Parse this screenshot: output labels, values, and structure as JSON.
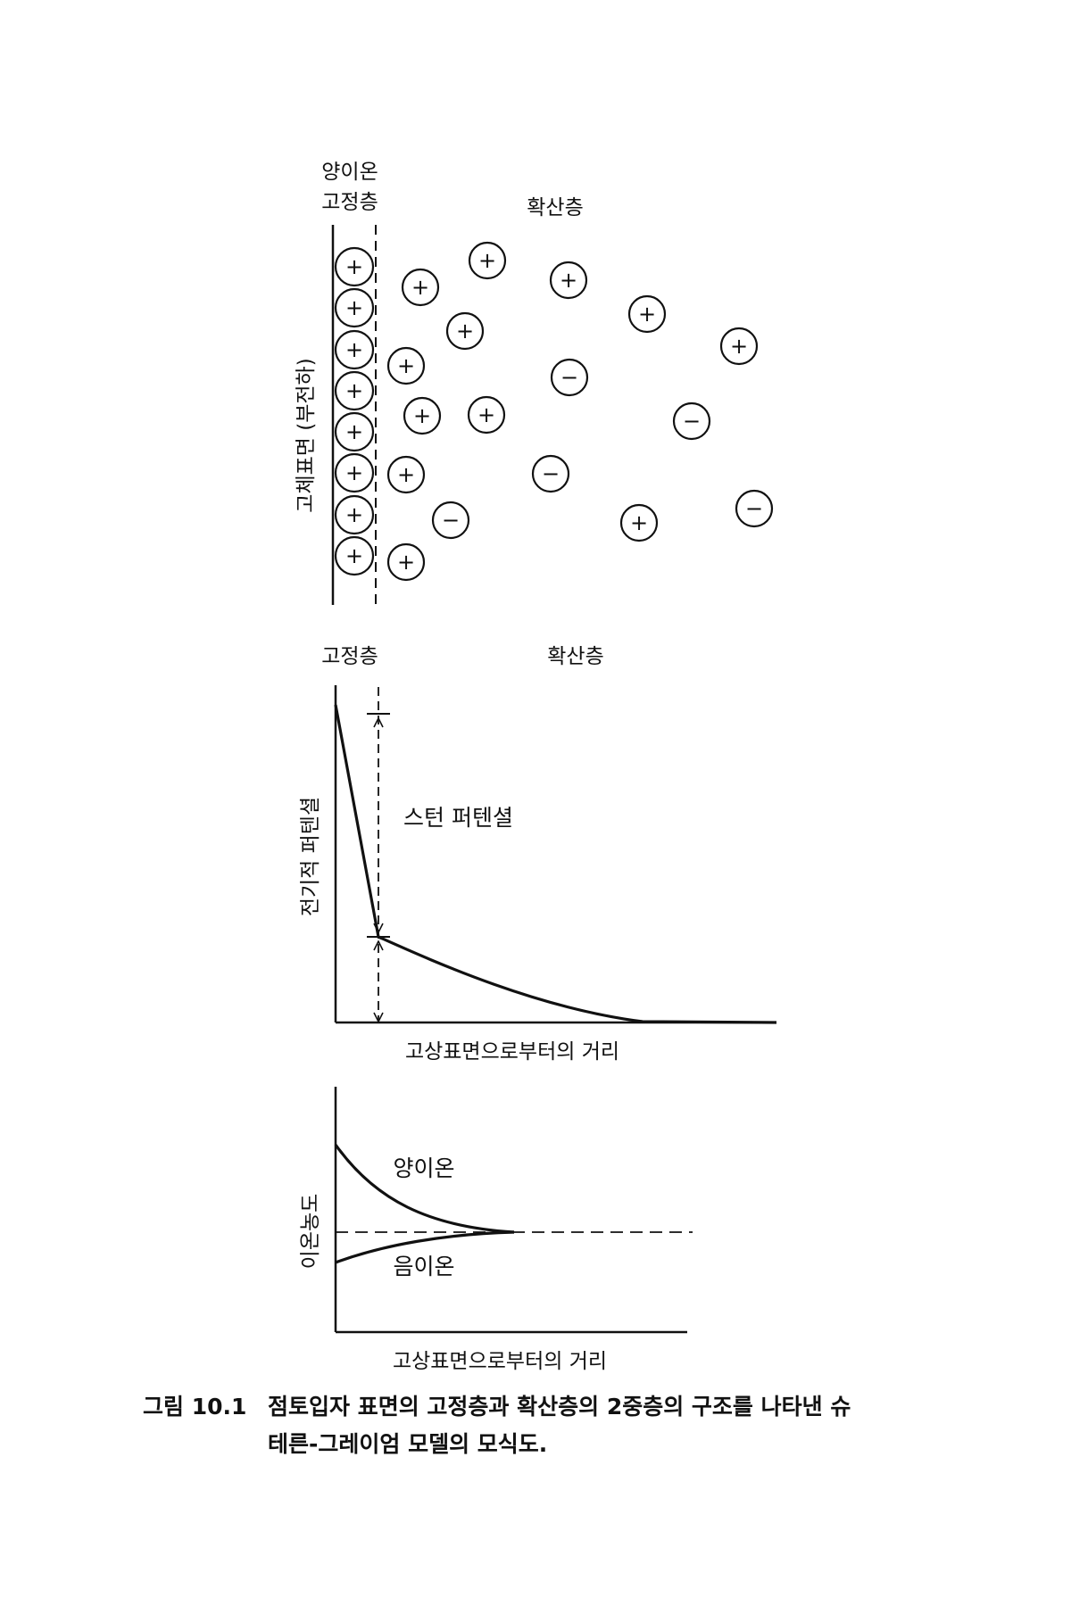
{
  "panel1": {
    "label_cation": "양이온",
    "label_fixed": "고정층",
    "label_diffuse": "확산층",
    "label_surface": "고체표면 (부전하)",
    "fixed_ion_sign": "+",
    "ions": [
      "+",
      "+",
      "+",
      "+",
      "+",
      "+",
      "+",
      "−",
      "+",
      "+",
      "−",
      "+",
      "−",
      "−",
      "+",
      "−",
      "+",
      "+",
      "+",
      "+",
      "+",
      "+"
    ]
  },
  "panel2": {
    "label_fixed": "고정층",
    "label_diffuse": "확산층",
    "ylabel": "전기적 퍼텐셜",
    "xlabel": "고상표면으로부터의 거리",
    "annotation": "스턴 퍼텐셜"
  },
  "panel3": {
    "ylabel": "이온농도",
    "xlabel": "고상표면으로부터의 거리",
    "label_cation": "양이온",
    "label_anion": "음이온"
  },
  "caption": {
    "number": "그림 10.1",
    "line1": "점토입자 표면의 고정층과 확산층의 2중층의 구조를 나타낸 슈",
    "line2": "테른-그레이엄 모델의 모식도."
  }
}
